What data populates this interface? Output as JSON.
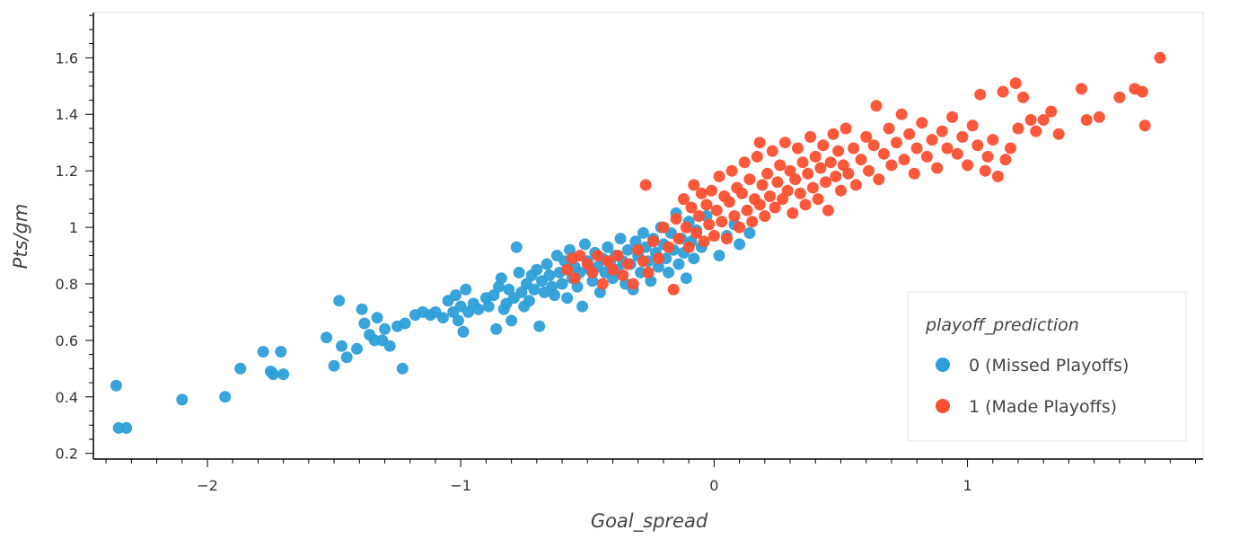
{
  "chart_data": {
    "type": "scatter",
    "xlabel": "Goal_spread",
    "ylabel": "Pts/gm",
    "xlim": [
      -2.45,
      1.93
    ],
    "ylim": [
      0.18,
      1.76
    ],
    "x_ticks": [
      -2,
      -1,
      0,
      1
    ],
    "x_tick_labels": [
      "−2",
      "−1",
      "0",
      "1"
    ],
    "y_ticks": [
      0.2,
      0.4,
      0.6,
      0.8,
      1.0,
      1.2,
      1.4,
      1.6
    ],
    "y_tick_labels": [
      "0.2",
      "0.4",
      "0.6",
      "0.8",
      "1",
      "1.2",
      "1.4",
      "1.6"
    ],
    "grid": false,
    "legend": {
      "title": "playoff_prediction",
      "position": "bottom-right",
      "entries": [
        {
          "label": "0 (Missed Playoffs)",
          "color": "#2d9fd8"
        },
        {
          "label": "1 (Made Playoffs)",
          "color": "#fc4f30"
        }
      ]
    },
    "series": [
      {
        "name": "0 (Missed Playoffs)",
        "color": "#2d9fd8",
        "points": [
          [
            -2.36,
            0.44
          ],
          [
            -2.35,
            0.29
          ],
          [
            -2.32,
            0.29
          ],
          [
            -2.1,
            0.39
          ],
          [
            -1.93,
            0.4
          ],
          [
            -1.87,
            0.5
          ],
          [
            -1.78,
            0.56
          ],
          [
            -1.75,
            0.49
          ],
          [
            -1.74,
            0.48
          ],
          [
            -1.71,
            0.56
          ],
          [
            -1.7,
            0.48
          ],
          [
            -1.53,
            0.61
          ],
          [
            -1.5,
            0.51
          ],
          [
            -1.48,
            0.74
          ],
          [
            -1.47,
            0.58
          ],
          [
            -1.45,
            0.54
          ],
          [
            -1.41,
            0.57
          ],
          [
            -1.39,
            0.71
          ],
          [
            -1.38,
            0.66
          ],
          [
            -1.36,
            0.62
          ],
          [
            -1.34,
            0.6
          ],
          [
            -1.33,
            0.68
          ],
          [
            -1.31,
            0.6
          ],
          [
            -1.3,
            0.64
          ],
          [
            -1.28,
            0.58
          ],
          [
            -1.25,
            0.65
          ],
          [
            -1.23,
            0.5
          ],
          [
            -1.22,
            0.66
          ],
          [
            -1.18,
            0.69
          ],
          [
            -1.15,
            0.7
          ],
          [
            -1.12,
            0.69
          ],
          [
            -1.1,
            0.7
          ],
          [
            -1.07,
            0.68
          ],
          [
            -1.05,
            0.74
          ],
          [
            -1.03,
            0.7
          ],
          [
            -1.02,
            0.76
          ],
          [
            -1.01,
            0.67
          ],
          [
            -1.0,
            0.72
          ],
          [
            -0.99,
            0.63
          ],
          [
            -0.98,
            0.78
          ],
          [
            -0.97,
            0.7
          ],
          [
            -0.95,
            0.73
          ],
          [
            -0.93,
            0.71
          ],
          [
            -0.9,
            0.75
          ],
          [
            -0.89,
            0.72
          ],
          [
            -0.87,
            0.76
          ],
          [
            -0.86,
            0.64
          ],
          [
            -0.85,
            0.79
          ],
          [
            -0.84,
            0.82
          ],
          [
            -0.83,
            0.71
          ],
          [
            -0.82,
            0.73
          ],
          [
            -0.81,
            0.78
          ],
          [
            -0.8,
            0.67
          ],
          [
            -0.79,
            0.75
          ],
          [
            -0.78,
            0.93
          ],
          [
            -0.77,
            0.84
          ],
          [
            -0.76,
            0.77
          ],
          [
            -0.75,
            0.72
          ],
          [
            -0.74,
            0.8
          ],
          [
            -0.73,
            0.74
          ],
          [
            -0.72,
            0.83
          ],
          [
            -0.71,
            0.78
          ],
          [
            -0.7,
            0.85
          ],
          [
            -0.69,
            0.65
          ],
          [
            -0.68,
            0.81
          ],
          [
            -0.67,
            0.77
          ],
          [
            -0.66,
            0.87
          ],
          [
            -0.65,
            0.83
          ],
          [
            -0.64,
            0.79
          ],
          [
            -0.63,
            0.76
          ],
          [
            -0.62,
            0.9
          ],
          [
            -0.61,
            0.84
          ],
          [
            -0.6,
            0.8
          ],
          [
            -0.59,
            0.88
          ],
          [
            -0.58,
            0.75
          ],
          [
            -0.57,
            0.92
          ],
          [
            -0.56,
            0.82
          ],
          [
            -0.55,
            0.86
          ],
          [
            -0.54,
            0.79
          ],
          [
            -0.53,
            0.84
          ],
          [
            -0.52,
            0.72
          ],
          [
            -0.51,
            0.94
          ],
          [
            -0.5,
            0.88
          ],
          [
            -0.49,
            0.85
          ],
          [
            -0.48,
            0.81
          ],
          [
            -0.47,
            0.91
          ],
          [
            -0.46,
            0.86
          ],
          [
            -0.45,
            0.77
          ],
          [
            -0.44,
            0.89
          ],
          [
            -0.43,
            0.84
          ],
          [
            -0.42,
            0.93
          ],
          [
            -0.41,
            0.87
          ],
          [
            -0.4,
            0.82
          ],
          [
            -0.39,
            0.9
          ],
          [
            -0.38,
            0.85
          ],
          [
            -0.37,
            0.96
          ],
          [
            -0.36,
            0.88
          ],
          [
            -0.35,
            0.8
          ],
          [
            -0.34,
            0.92
          ],
          [
            -0.33,
            0.87
          ],
          [
            -0.32,
            0.78
          ],
          [
            -0.31,
            0.95
          ],
          [
            -0.3,
            0.9
          ],
          [
            -0.29,
            0.84
          ],
          [
            -0.28,
            0.98
          ],
          [
            -0.27,
            0.93
          ],
          [
            -0.26,
            0.88
          ],
          [
            -0.25,
            0.81
          ],
          [
            -0.24,
            0.96
          ],
          [
            -0.23,
            0.91
          ],
          [
            -0.22,
            0.86
          ],
          [
            -0.21,
            1.0
          ],
          [
            -0.2,
            0.94
          ],
          [
            -0.19,
            0.89
          ],
          [
            -0.18,
            0.84
          ],
          [
            -0.17,
            0.98
          ],
          [
            -0.16,
            0.92
          ],
          [
            -0.15,
            1.05
          ],
          [
            -0.14,
            0.87
          ],
          [
            -0.13,
            0.96
          ],
          [
            -0.12,
            0.91
          ],
          [
            -0.11,
            0.82
          ],
          [
            -0.1,
            1.02
          ],
          [
            -0.09,
            0.95
          ],
          [
            -0.08,
            0.89
          ],
          [
            -0.07,
            0.99
          ],
          [
            -0.05,
            0.93
          ],
          [
            -0.03,
            1.04
          ],
          [
            0.02,
            0.9
          ],
          [
            0.05,
            0.97
          ],
          [
            0.08,
            1.01
          ],
          [
            0.1,
            0.94
          ],
          [
            0.14,
            0.98
          ]
        ]
      },
      {
        "name": "1 (Made Playoffs)",
        "color": "#fc4f30",
        "points": [
          [
            -0.58,
            0.85
          ],
          [
            -0.56,
            0.89
          ],
          [
            -0.55,
            0.82
          ],
          [
            -0.53,
            0.9
          ],
          [
            -0.5,
            0.87
          ],
          [
            -0.48,
            0.84
          ],
          [
            -0.46,
            0.9
          ],
          [
            -0.44,
            0.8
          ],
          [
            -0.42,
            0.88
          ],
          [
            -0.4,
            0.85
          ],
          [
            -0.38,
            0.9
          ],
          [
            -0.36,
            0.83
          ],
          [
            -0.34,
            0.87
          ],
          [
            -0.32,
            0.8
          ],
          [
            -0.3,
            0.92
          ],
          [
            -0.28,
            0.88
          ],
          [
            -0.27,
            1.15
          ],
          [
            -0.26,
            0.84
          ],
          [
            -0.24,
            0.95
          ],
          [
            -0.22,
            0.89
          ],
          [
            -0.2,
            1.0
          ],
          [
            -0.18,
            0.93
          ],
          [
            -0.16,
            0.78
          ],
          [
            -0.15,
            1.03
          ],
          [
            -0.14,
            0.96
          ],
          [
            -0.12,
            1.1
          ],
          [
            -0.11,
            1.0
          ],
          [
            -0.1,
            0.93
          ],
          [
            -0.09,
            1.07
          ],
          [
            -0.08,
            1.15
          ],
          [
            -0.07,
            0.98
          ],
          [
            -0.06,
            1.04
          ],
          [
            -0.05,
            1.12
          ],
          [
            -0.04,
            0.95
          ],
          [
            -0.03,
            1.08
          ],
          [
            -0.02,
            1.01
          ],
          [
            -0.01,
            1.13
          ],
          [
            0.0,
            0.97
          ],
          [
            0.01,
            1.06
          ],
          [
            0.02,
            1.18
          ],
          [
            0.03,
            1.02
          ],
          [
            0.04,
            1.11
          ],
          [
            0.05,
            0.96
          ],
          [
            0.06,
            1.09
          ],
          [
            0.07,
            1.2
          ],
          [
            0.08,
            1.04
          ],
          [
            0.09,
            1.14
          ],
          [
            0.1,
            1.0
          ],
          [
            0.11,
            1.12
          ],
          [
            0.12,
            1.23
          ],
          [
            0.13,
            1.06
          ],
          [
            0.14,
            1.17
          ],
          [
            0.15,
            1.02
          ],
          [
            0.16,
            1.1
          ],
          [
            0.17,
            1.25
          ],
          [
            0.18,
            1.08
          ],
          [
            0.18,
            1.3
          ],
          [
            0.19,
            1.15
          ],
          [
            0.2,
            1.04
          ],
          [
            0.21,
            1.19
          ],
          [
            0.22,
            1.11
          ],
          [
            0.23,
            1.27
          ],
          [
            0.24,
            1.07
          ],
          [
            0.25,
            1.16
          ],
          [
            0.26,
            1.22
          ],
          [
            0.27,
            1.1
          ],
          [
            0.28,
            1.3
          ],
          [
            0.29,
            1.13
          ],
          [
            0.3,
            1.2
          ],
          [
            0.31,
            1.05
          ],
          [
            0.32,
            1.17
          ],
          [
            0.33,
            1.28
          ],
          [
            0.34,
            1.12
          ],
          [
            0.35,
            1.23
          ],
          [
            0.36,
            1.08
          ],
          [
            0.37,
            1.19
          ],
          [
            0.38,
            1.32
          ],
          [
            0.39,
            1.14
          ],
          [
            0.4,
            1.25
          ],
          [
            0.41,
            1.1
          ],
          [
            0.42,
            1.21
          ],
          [
            0.43,
            1.29
          ],
          [
            0.44,
            1.16
          ],
          [
            0.45,
            1.06
          ],
          [
            0.46,
            1.23
          ],
          [
            0.47,
            1.33
          ],
          [
            0.48,
            1.18
          ],
          [
            0.49,
            1.27
          ],
          [
            0.5,
            1.13
          ],
          [
            0.51,
            1.22
          ],
          [
            0.52,
            1.35
          ],
          [
            0.53,
            1.19
          ],
          [
            0.55,
            1.28
          ],
          [
            0.56,
            1.15
          ],
          [
            0.58,
            1.24
          ],
          [
            0.6,
            1.32
          ],
          [
            0.61,
            1.2
          ],
          [
            0.63,
            1.29
          ],
          [
            0.64,
            1.43
          ],
          [
            0.65,
            1.17
          ],
          [
            0.67,
            1.26
          ],
          [
            0.69,
            1.35
          ],
          [
            0.7,
            1.22
          ],
          [
            0.72,
            1.3
          ],
          [
            0.74,
            1.4
          ],
          [
            0.75,
            1.24
          ],
          [
            0.77,
            1.33
          ],
          [
            0.79,
            1.19
          ],
          [
            0.8,
            1.28
          ],
          [
            0.82,
            1.37
          ],
          [
            0.84,
            1.25
          ],
          [
            0.86,
            1.31
          ],
          [
            0.88,
            1.21
          ],
          [
            0.9,
            1.34
          ],
          [
            0.92,
            1.28
          ],
          [
            0.94,
            1.39
          ],
          [
            0.96,
            1.26
          ],
          [
            0.98,
            1.32
          ],
          [
            1.0,
            1.22
          ],
          [
            1.02,
            1.36
          ],
          [
            1.04,
            1.29
          ],
          [
            1.05,
            1.47
          ],
          [
            1.07,
            1.2
          ],
          [
            1.08,
            1.25
          ],
          [
            1.1,
            1.31
          ],
          [
            1.12,
            1.18
          ],
          [
            1.14,
            1.48
          ],
          [
            1.15,
            1.24
          ],
          [
            1.17,
            1.28
          ],
          [
            1.19,
            1.51
          ],
          [
            1.2,
            1.35
          ],
          [
            1.22,
            1.46
          ],
          [
            1.25,
            1.38
          ],
          [
            1.27,
            1.34
          ],
          [
            1.3,
            1.38
          ],
          [
            1.33,
            1.41
          ],
          [
            1.36,
            1.33
          ],
          [
            1.45,
            1.49
          ],
          [
            1.47,
            1.38
          ],
          [
            1.52,
            1.39
          ],
          [
            1.6,
            1.46
          ],
          [
            1.66,
            1.49
          ],
          [
            1.69,
            1.48
          ],
          [
            1.7,
            1.36
          ],
          [
            1.76,
            1.6
          ]
        ]
      }
    ]
  }
}
